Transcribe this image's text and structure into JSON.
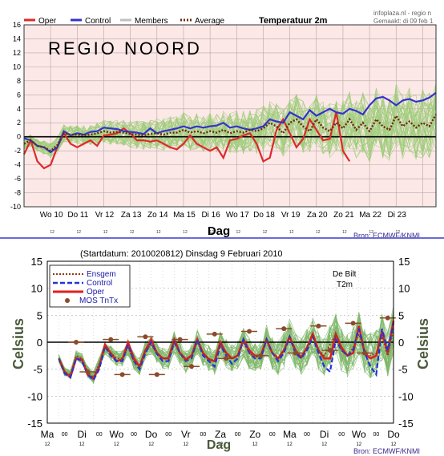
{
  "top_chart": {
    "title": "Temperatuur 2m",
    "watermark": "REGIO NOORD",
    "source_url": "infoplaza.nl - regio n",
    "run_line": "Gemaakt: di 09 feb 1",
    "legend": [
      "Oper",
      "Control",
      "Members",
      "Average"
    ],
    "xlabel": "Dag",
    "source": "Bron: ECMWF/KNMI",
    "hour_tick": "12",
    "colors": {
      "oper": "#dd2a2a",
      "control": "#3333cc",
      "members": "#9ccc78",
      "average": "#6b2a12",
      "bg": "#fde8e8",
      "zero": "#000000"
    }
  },
  "bottom_chart": {
    "header": "(Startdatum: 2010020812)  Dinsdag   9 Februari  2010",
    "station": "De Bilt",
    "variable": "T2m",
    "legend": [
      "Ensgem",
      "Control",
      "Oper",
      "MOS TnTx"
    ],
    "ylabel_left": "Celsius",
    "ylabel_right": "Celsius",
    "xlabel": "Dag",
    "source": "Bron: ECMWF/KNMI",
    "hour_ticks": [
      "00",
      "12"
    ],
    "colors": {
      "ensgem": "#8b3a1a",
      "control": "#2233dd",
      "oper": "#e21e1e",
      "mos": "#8b4a2b",
      "members": "#7fb86a"
    }
  },
  "chart_data": [
    {
      "type": "line",
      "title": "Temperatuur 2m",
      "xlabel": "Dag",
      "ylabel": "",
      "ylim": [
        -10,
        16
      ],
      "yticks": [
        -10,
        -8,
        -6,
        -4,
        -2,
        0,
        2,
        4,
        6,
        8,
        10,
        12,
        14,
        16
      ],
      "xlim": [
        0,
        31
      ],
      "xtick_labels": [
        "Wo 10",
        "Do 11",
        "Vr 12",
        "Za 13",
        "Zo 14",
        "Ma 15",
        "Di 16",
        "Wo 17",
        "Do 18",
        "Vr 19",
        "Za 20",
        "Zo 21",
        "Ma 22",
        "Di 23"
      ],
      "xtick_positions": [
        2,
        4,
        6,
        8,
        10,
        12,
        14,
        16,
        18,
        20,
        22,
        24,
        26,
        28
      ],
      "legend_position": "top-left",
      "grid": true,
      "x": [
        0,
        0.5,
        1,
        1.5,
        2,
        2.5,
        3,
        3.5,
        4,
        4.5,
        5,
        5.5,
        6,
        6.5,
        7,
        7.5,
        8,
        8.5,
        9,
        9.5,
        10,
        10.5,
        11,
        11.5,
        12,
        12.5,
        13,
        13.5,
        14,
        14.5,
        15,
        15.5,
        16,
        16.5,
        17,
        17.5,
        18,
        18.5,
        19,
        19.5,
        20,
        20.5,
        21,
        21.5,
        22,
        22.5,
        23,
        23.5,
        24,
        24.5,
        25,
        25.5,
        26,
        26.5,
        27,
        27.5,
        28,
        28.5,
        29,
        29.5,
        30,
        30.5,
        31
      ],
      "series": [
        {
          "name": "Oper",
          "values": [
            -2.5,
            -0.5,
            -3.5,
            -4.5,
            -4,
            -1.5,
            0.5,
            -1,
            -1.5,
            -1,
            -0.5,
            -1.3,
            0.2,
            0.3,
            0.5,
            1.2,
            0.5,
            -0.5,
            -0.5,
            -0.7,
            -0.5,
            -1,
            -1.5,
            -1.8,
            -1,
            0.2,
            -1,
            -1.5,
            -2,
            -1.5,
            -3,
            -0.5,
            -0.3,
            0.2,
            0.5,
            -1,
            -3.5,
            -3,
            1,
            2.5,
            0.5,
            -1.5,
            -0.3,
            2.5,
            1,
            -0.5,
            -0.3,
            3.5,
            -2,
            -3.5,
            null,
            null,
            null,
            null,
            null,
            null,
            null,
            null,
            null,
            null,
            null,
            null,
            null
          ]
        },
        {
          "name": "Control",
          "values": [
            -0.2,
            -0.5,
            -1.3,
            -1.5,
            -2.2,
            -1.5,
            0.8,
            0.2,
            0.5,
            0.3,
            0.7,
            0.8,
            1.3,
            1.2,
            1.1,
            0.8,
            0.7,
            0.6,
            0.4,
            1.2,
            0.5,
            0.8,
            1,
            1.2,
            1.5,
            1.2,
            1.5,
            1.3,
            1.5,
            1.6,
            2,
            1.3,
            1.5,
            1.2,
            1,
            1.2,
            1.5,
            2.5,
            2.2,
            2,
            3.5,
            3,
            2.5,
            3.8,
            3,
            3.5,
            4,
            3.5,
            3.3,
            4,
            3.7,
            3.2,
            4.5,
            5.5,
            5.7,
            5.2,
            4.5,
            5.2,
            5.4,
            5,
            5.2,
            5.6,
            6.3
          ]
        },
        {
          "name": "Average",
          "values": [
            -1,
            -0.5,
            -1.3,
            -1.5,
            -2,
            -1.2,
            0.5,
            0.3,
            0.3,
            0.2,
            0.3,
            0.5,
            0.8,
            0.6,
            0.7,
            0.6,
            0.4,
            0.3,
            0.2,
            0.4,
            0.5,
            0.3,
            0.6,
            0.6,
            1,
            0.6,
            0.8,
            0.5,
            0.8,
            0.6,
            1,
            0.5,
            0.8,
            0.6,
            1,
            0.8,
            1.2,
            2,
            1.5,
            0.5,
            2,
            2.5,
            1.5,
            0.8,
            2.5,
            1.3,
            0.8,
            2,
            1.2,
            2.5,
            1,
            2,
            0.8,
            2.5,
            1.5,
            1,
            3,
            1.5,
            2.2,
            1.3,
            2,
            1.5,
            3.2
          ]
        }
      ]
    },
    {
      "type": "line",
      "title": "(Startdatum: 2010020812)  Dinsdag   9 Februari  2010",
      "xlabel": "Dag",
      "ylabel": "Celsius",
      "ylim": [
        -15,
        15
      ],
      "yticks": [
        -15,
        -10,
        -5,
        0,
        5,
        10,
        15
      ],
      "xlim": [
        0,
        30
      ],
      "xtick_labels": [
        "Ma",
        "Di",
        "Wo",
        "Do",
        "Vr",
        "Za",
        "Zo",
        "Ma",
        "Di",
        "Wo",
        "Do"
      ],
      "xtick_positions": [
        0,
        3,
        6,
        9,
        12,
        15,
        18,
        21,
        24,
        27,
        30
      ],
      "legend_position": "top-left",
      "grid": true,
      "x": [
        1,
        1.5,
        2,
        2.5,
        3,
        3.5,
        4,
        4.5,
        5,
        5.5,
        6,
        6.5,
        7,
        7.5,
        8,
        8.5,
        9,
        9.5,
        10,
        10.5,
        11,
        11.5,
        12,
        12.5,
        13,
        13.5,
        14,
        14.5,
        15,
        15.5,
        16,
        16.5,
        17,
        17.5,
        18,
        18.5,
        19,
        19.5,
        20,
        20.5,
        21,
        21.5,
        22,
        22.5,
        23,
        23.5,
        24,
        24.5,
        25,
        25.5,
        26,
        26.5,
        27,
        27.5,
        28,
        28.5,
        29,
        29.5,
        30
      ],
      "series": [
        {
          "name": "Ensgem",
          "values": [
            -3,
            -5.5,
            -6,
            -2.5,
            -3,
            -5.5,
            -6.5,
            -4,
            -1,
            -2,
            -3,
            -3,
            -1,
            -3.5,
            -4.5,
            -1.5,
            -0.5,
            -2,
            -3,
            -3,
            0,
            -2,
            -3.5,
            -2.5,
            0,
            -2,
            -3,
            -3.5,
            -0.5,
            -2,
            -3,
            -2.5,
            0,
            -2,
            -2.8,
            -2.5,
            0.5,
            -2,
            -3,
            -1.5,
            1,
            -1.5,
            -2.8,
            -1,
            1,
            -1.5,
            -2.5,
            -0.5,
            1.5,
            -1.5,
            -2.5,
            -1,
            1.5,
            -1.5,
            -2.5,
            -2,
            1,
            -2.5,
            2.5
          ]
        },
        {
          "name": "Control",
          "values": [
            -3,
            -5.8,
            -6.5,
            -3,
            -3.5,
            -6,
            -7,
            -5,
            -0.8,
            -2.5,
            -3.5,
            -3.5,
            -0.5,
            -3.5,
            -5,
            -2,
            0,
            -2.2,
            -3.5,
            -3.5,
            0,
            -2,
            -3.5,
            -3,
            0.5,
            -2.5,
            -3.5,
            -4.5,
            -0.5,
            -2.5,
            -4,
            -3,
            0.5,
            -2,
            -3,
            -3,
            0.5,
            -2,
            -3.5,
            -2,
            1,
            -2,
            -3,
            -1.5,
            1,
            -2,
            -4.5,
            -5.5,
            0.5,
            -1.5,
            -2.5,
            -1.5,
            2.5,
            -2,
            -4.5,
            -6,
            2.5,
            -1.5,
            3.5
          ]
        },
        {
          "name": "Oper",
          "values": [
            -3,
            -5.5,
            -6.5,
            -3,
            -3.2,
            -6,
            -6.8,
            -4.5,
            -0.5,
            -2,
            -3.5,
            -3.2,
            0,
            -3,
            -4.5,
            -1.5,
            0.5,
            -2,
            -3,
            -3,
            0.5,
            -2,
            -3.2,
            -2.5,
            0.5,
            -2,
            -3.2,
            -3.5,
            0,
            -2,
            -3,
            -2.5,
            0.5,
            -1.5,
            -2.5,
            -2.5,
            0.5,
            -2,
            -3,
            -1.5,
            1,
            -1.5,
            -2.8,
            -1,
            1.5,
            -1.5,
            -3,
            -3,
            1.5,
            -1,
            -2.5,
            -2,
            3,
            -2,
            -3,
            -2.5,
            2,
            -2,
            4
          ]
        },
        {
          "name": "MOS TnTx",
          "x": [
            2.5,
            3.5,
            5.5,
            6.5,
            8.5,
            9.5,
            11.5,
            12.5,
            14.5,
            15.5,
            17.5,
            18.5,
            20.5,
            21.5,
            23.5,
            24.5,
            26.5,
            27.5,
            29.5
          ],
          "values": [
            0,
            -5.5,
            0.5,
            -6,
            1,
            -6,
            0.5,
            -4.5,
            1.5,
            -3,
            2,
            -2.5,
            2.5,
            -2,
            3,
            -1.5,
            3.5,
            -2,
            4.5
          ]
        }
      ]
    }
  ]
}
